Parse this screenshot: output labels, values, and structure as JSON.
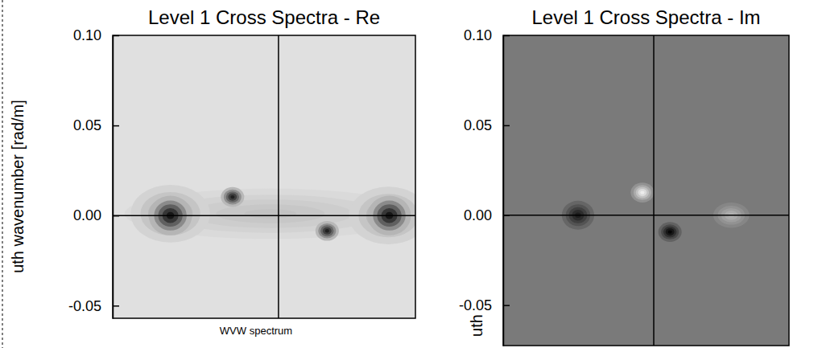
{
  "chart_data": [
    {
      "type": "heatmap",
      "title": "Level 1 Cross Spectra - Re",
      "y_label": "uth wavenumber [rad/m]",
      "annotation": "WVW spectrum",
      "xlim": [
        -0.092,
        0.076
      ],
      "ylim": [
        -0.057,
        0.1
      ],
      "yticks": [
        {
          "value": 0.1,
          "label": "0.10"
        },
        {
          "value": 0.05,
          "label": "0.05"
        },
        {
          "value": 0,
          "label": "0.00"
        },
        {
          "value": -0.05,
          "label": "-0.05"
        }
      ],
      "tick_labels": "y",
      "zlim": [
        0,
        1
      ],
      "peaks": [
        {
          "x": -0.0045,
          "y": 0.001,
          "rx": 0.081,
          "ry": 0.014,
          "value": 0.14
        },
        {
          "x": -0.06,
          "y": 0.001,
          "rx": 0.022,
          "ry": 0.016,
          "value": 0.3
        },
        {
          "x": 0.061,
          "y": 0.0,
          "rx": 0.022,
          "ry": 0.016,
          "value": 0.3
        },
        {
          "x": -0.06,
          "y": 0.0,
          "rx": 0.012,
          "ry": 0.011,
          "value": 0.95
        },
        {
          "x": 0.0615,
          "y": 0.0,
          "rx": 0.012,
          "ry": 0.011,
          "value": 0.95
        },
        {
          "x": -0.0255,
          "y": 0.0103,
          "rx": 0.0065,
          "ry": 0.0055,
          "value": 0.9
        },
        {
          "x": 0.027,
          "y": -0.0085,
          "rx": 0.0065,
          "ry": 0.0055,
          "value": 0.9
        }
      ]
    },
    {
      "type": "heatmap",
      "title": "Level 1 Cross Spectra - Im",
      "y_label": "uth",
      "xlim": [
        -0.0835,
        0.075
      ],
      "ylim": [
        -0.0725,
        0.1
      ],
      "yticks": [
        {
          "value": 0.1,
          "label": "0.10"
        },
        {
          "value": 0.05,
          "label": "0.05"
        },
        {
          "value": 0,
          "label": "0.00"
        },
        {
          "value": -0.05,
          "label": "-0.05"
        }
      ],
      "tick_labels": "y",
      "zlim": [
        -1,
        1
      ],
      "peaks": [
        {
          "x": -0.042,
          "y": 0.0,
          "rx": 0.009,
          "ry": 0.008,
          "value": -0.8
        },
        {
          "x": -0.0063,
          "y": 0.0126,
          "rx": 0.0065,
          "ry": 0.0055,
          "value": 0.9
        },
        {
          "x": 0.009,
          "y": -0.0093,
          "rx": 0.0065,
          "ry": 0.0055,
          "value": -1
        },
        {
          "x": 0.043,
          "y": 0.0,
          "rx": 0.01,
          "ry": 0.007,
          "value": 0.45
        }
      ]
    }
  ]
}
